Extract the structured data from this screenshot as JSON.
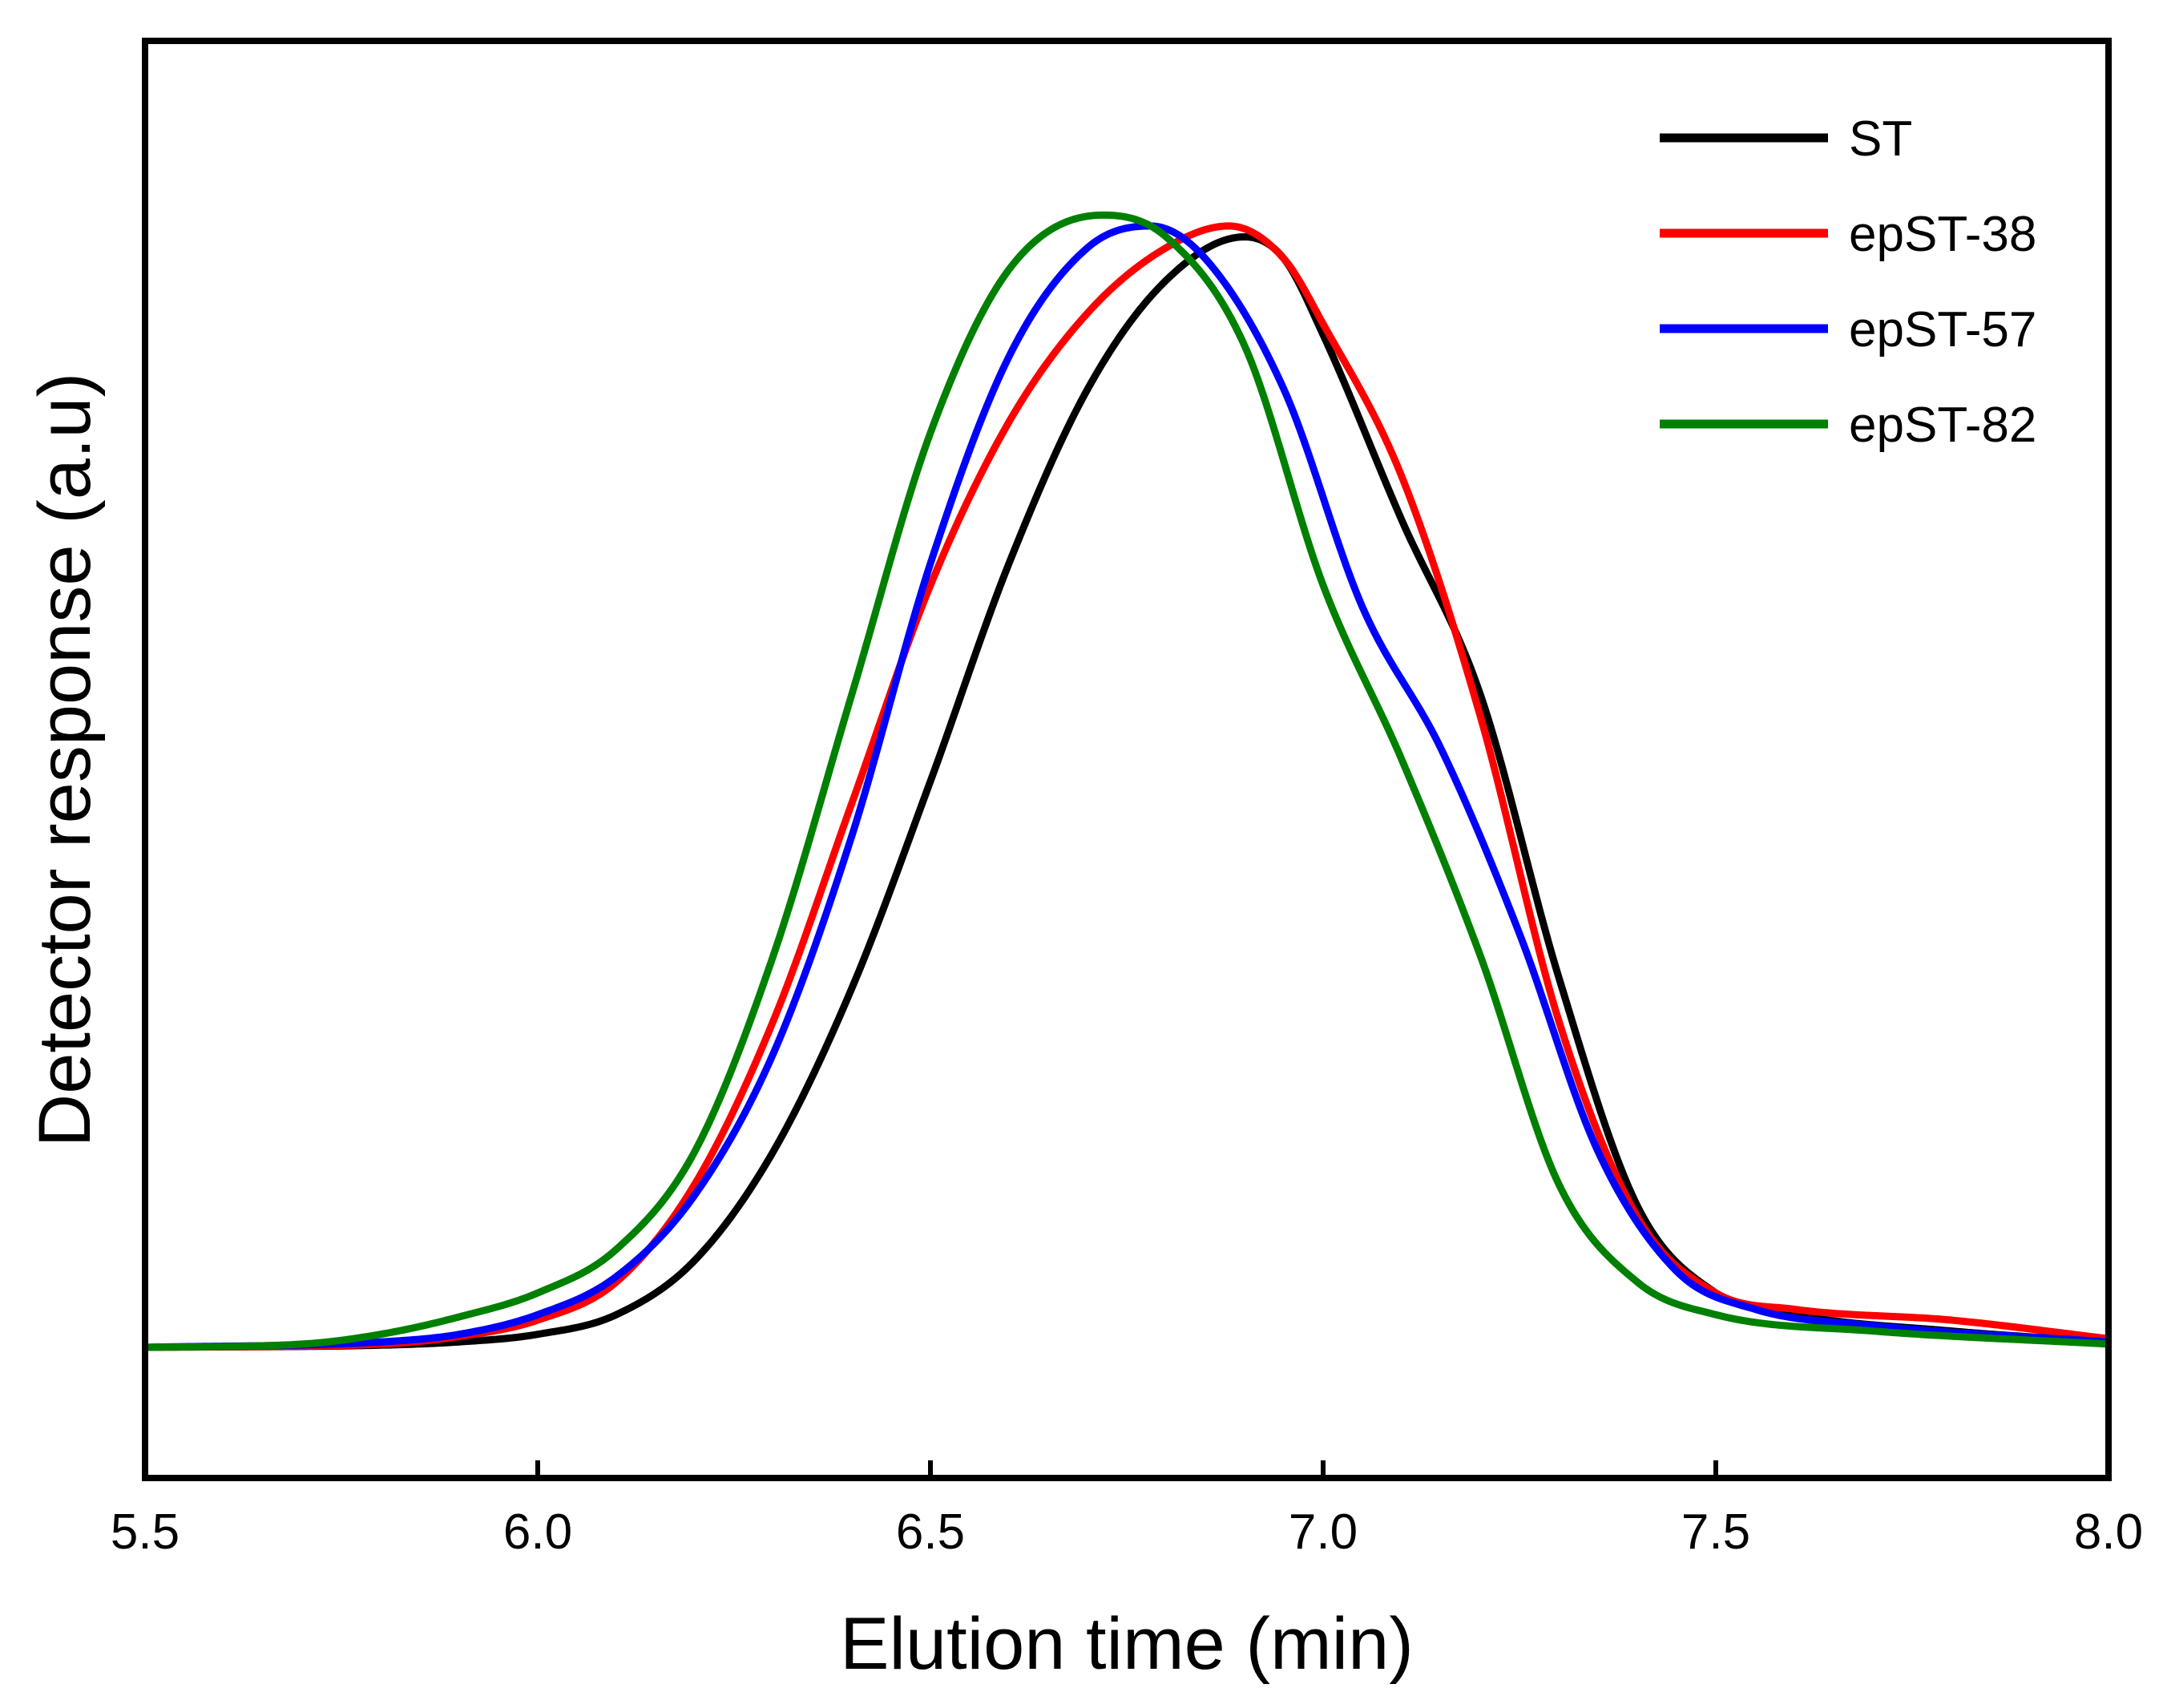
{
  "chart_data": {
    "type": "line",
    "title": "",
    "xlabel": "Elution time (min)",
    "ylabel": "Detector response (a.u)",
    "xlim": [
      5.5,
      8.0
    ],
    "ylim": [
      -0.12,
      1.2
    ],
    "xticks": [
      5.5,
      6.0,
      6.5,
      7.0,
      7.5,
      8.0
    ],
    "xtick_labels": [
      "5.5",
      "6.0",
      "6.5",
      "7.0",
      "7.5",
      "8.0"
    ],
    "yticks_visible": false,
    "grid": false,
    "legend_position": "top-right",
    "series": [
      {
        "name": "ST",
        "color": "#000000",
        "x": [
          5.5,
          5.8,
          5.9,
          6.0,
          6.1,
          6.2,
          6.3,
          6.4,
          6.5,
          6.6,
          6.7,
          6.8,
          6.9,
          6.95,
          7.0,
          7.1,
          7.2,
          7.3,
          7.4,
          7.5,
          7.6,
          7.8,
          8.0
        ],
        "y": [
          0.0,
          0.002,
          0.005,
          0.012,
          0.03,
          0.08,
          0.18,
          0.33,
          0.52,
          0.72,
          0.88,
          0.98,
          1.02,
          1.0,
          0.93,
          0.76,
          0.6,
          0.34,
          0.13,
          0.05,
          0.03,
          0.015,
          0.005
        ]
      },
      {
        "name": "epST-38",
        "color": "#ff0000",
        "x": [
          5.5,
          5.8,
          5.9,
          6.0,
          6.1,
          6.2,
          6.3,
          6.4,
          6.5,
          6.6,
          6.7,
          6.8,
          6.88,
          6.95,
          7.0,
          7.1,
          7.2,
          7.3,
          7.4,
          7.5,
          7.6,
          7.8,
          8.0
        ],
        "y": [
          0.0,
          0.003,
          0.01,
          0.025,
          0.06,
          0.15,
          0.3,
          0.5,
          0.7,
          0.85,
          0.95,
          1.01,
          1.03,
          1.0,
          0.94,
          0.8,
          0.58,
          0.3,
          0.12,
          0.05,
          0.035,
          0.025,
          0.008
        ]
      },
      {
        "name": "epST-57",
        "color": "#0000ff",
        "x": [
          5.5,
          5.8,
          5.9,
          6.0,
          6.1,
          6.2,
          6.3,
          6.4,
          6.5,
          6.6,
          6.7,
          6.78,
          6.85,
          6.95,
          7.05,
          7.15,
          7.25,
          7.35,
          7.45,
          7.55,
          7.7,
          8.0
        ],
        "y": [
          0.0,
          0.005,
          0.012,
          0.03,
          0.065,
          0.14,
          0.27,
          0.47,
          0.72,
          0.91,
          1.01,
          1.03,
          1.0,
          0.88,
          0.68,
          0.55,
          0.38,
          0.18,
          0.07,
          0.035,
          0.02,
          0.005
        ]
      },
      {
        "name": "epST-82",
        "color": "#008000",
        "x": [
          5.5,
          5.7,
          5.8,
          5.9,
          6.0,
          6.1,
          6.2,
          6.3,
          6.4,
          6.5,
          6.6,
          6.72,
          6.8,
          6.9,
          7.0,
          7.1,
          7.2,
          7.3,
          7.4,
          7.5,
          7.7,
          8.0
        ],
        "y": [
          0.0,
          0.003,
          0.012,
          0.028,
          0.05,
          0.09,
          0.18,
          0.36,
          0.6,
          0.84,
          0.99,
          1.04,
          1.02,
          0.92,
          0.7,
          0.54,
          0.36,
          0.15,
          0.06,
          0.03,
          0.015,
          0.003
        ]
      }
    ]
  }
}
